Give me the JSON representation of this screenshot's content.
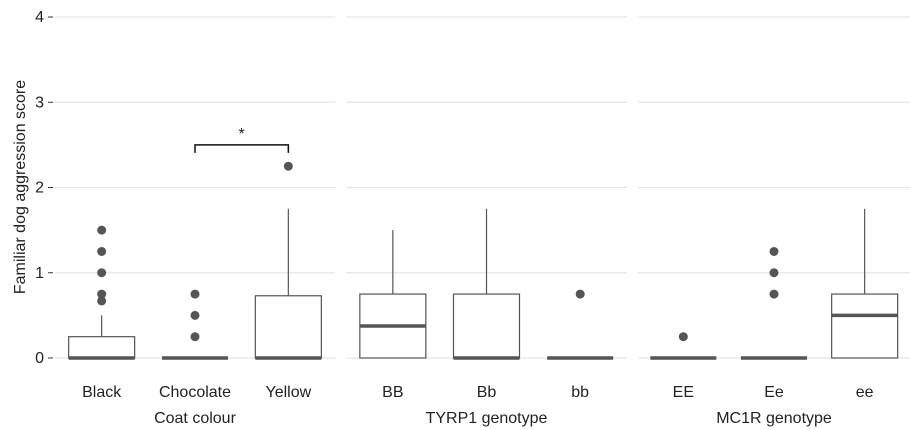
{
  "chart_data": {
    "type": "box",
    "ylabel": "Familiar dog aggression score",
    "ylim": [
      0,
      4
    ],
    "yticks": [
      0,
      1,
      2,
      3,
      4
    ],
    "grid": true,
    "colors": {
      "box_stroke": "#555555",
      "median": "#555555",
      "outlier": "#555555",
      "grid": "#e5e5e5"
    },
    "panels": [
      {
        "xlabel": "Coat colour",
        "categories": [
          "Black",
          "Chocolate",
          "Yellow"
        ],
        "boxes": [
          {
            "category": "Black",
            "min": 0,
            "q1": 0,
            "median": 0,
            "q3": 0.25,
            "max": 0.5,
            "outliers": [
              0.67,
              0.75,
              1.0,
              1.25,
              1.5
            ]
          },
          {
            "category": "Chocolate",
            "min": 0,
            "q1": 0,
            "median": 0,
            "q3": 0,
            "max": 0,
            "outliers": [
              0.25,
              0.5,
              0.75
            ]
          },
          {
            "category": "Yellow",
            "min": 0,
            "q1": 0,
            "median": 0,
            "q3": 0.73,
            "max": 1.75,
            "outliers": [
              2.25
            ]
          }
        ],
        "annotations": [
          {
            "from": "Chocolate",
            "to": "Yellow",
            "y": 2.5,
            "label": "*"
          }
        ]
      },
      {
        "xlabel": "TYRP1 genotype",
        "categories": [
          "BB",
          "Bb",
          "bb"
        ],
        "boxes": [
          {
            "category": "BB",
            "min": 0,
            "q1": 0,
            "median": 0.375,
            "q3": 0.75,
            "max": 1.5,
            "outliers": []
          },
          {
            "category": "Bb",
            "min": 0,
            "q1": 0,
            "median": 0,
            "q3": 0.75,
            "max": 1.75,
            "outliers": []
          },
          {
            "category": "bb",
            "min": 0,
            "q1": 0,
            "median": 0,
            "q3": 0,
            "max": 0,
            "outliers": [
              0.75
            ]
          }
        ],
        "annotations": []
      },
      {
        "xlabel": "MC1R genotype",
        "categories": [
          "EE",
          "Ee",
          "ee"
        ],
        "boxes": [
          {
            "category": "EE",
            "min": 0,
            "q1": 0,
            "median": 0,
            "q3": 0,
            "max": 0,
            "outliers": [
              0.25
            ]
          },
          {
            "category": "Ee",
            "min": 0,
            "q1": 0,
            "median": 0,
            "q3": 0,
            "max": 0,
            "outliers": [
              0.75,
              1.0,
              1.25
            ]
          },
          {
            "category": "ee",
            "min": 0,
            "q1": 0,
            "median": 0.5,
            "q3": 0.75,
            "max": 1.75,
            "outliers": []
          }
        ],
        "annotations": []
      }
    ]
  }
}
